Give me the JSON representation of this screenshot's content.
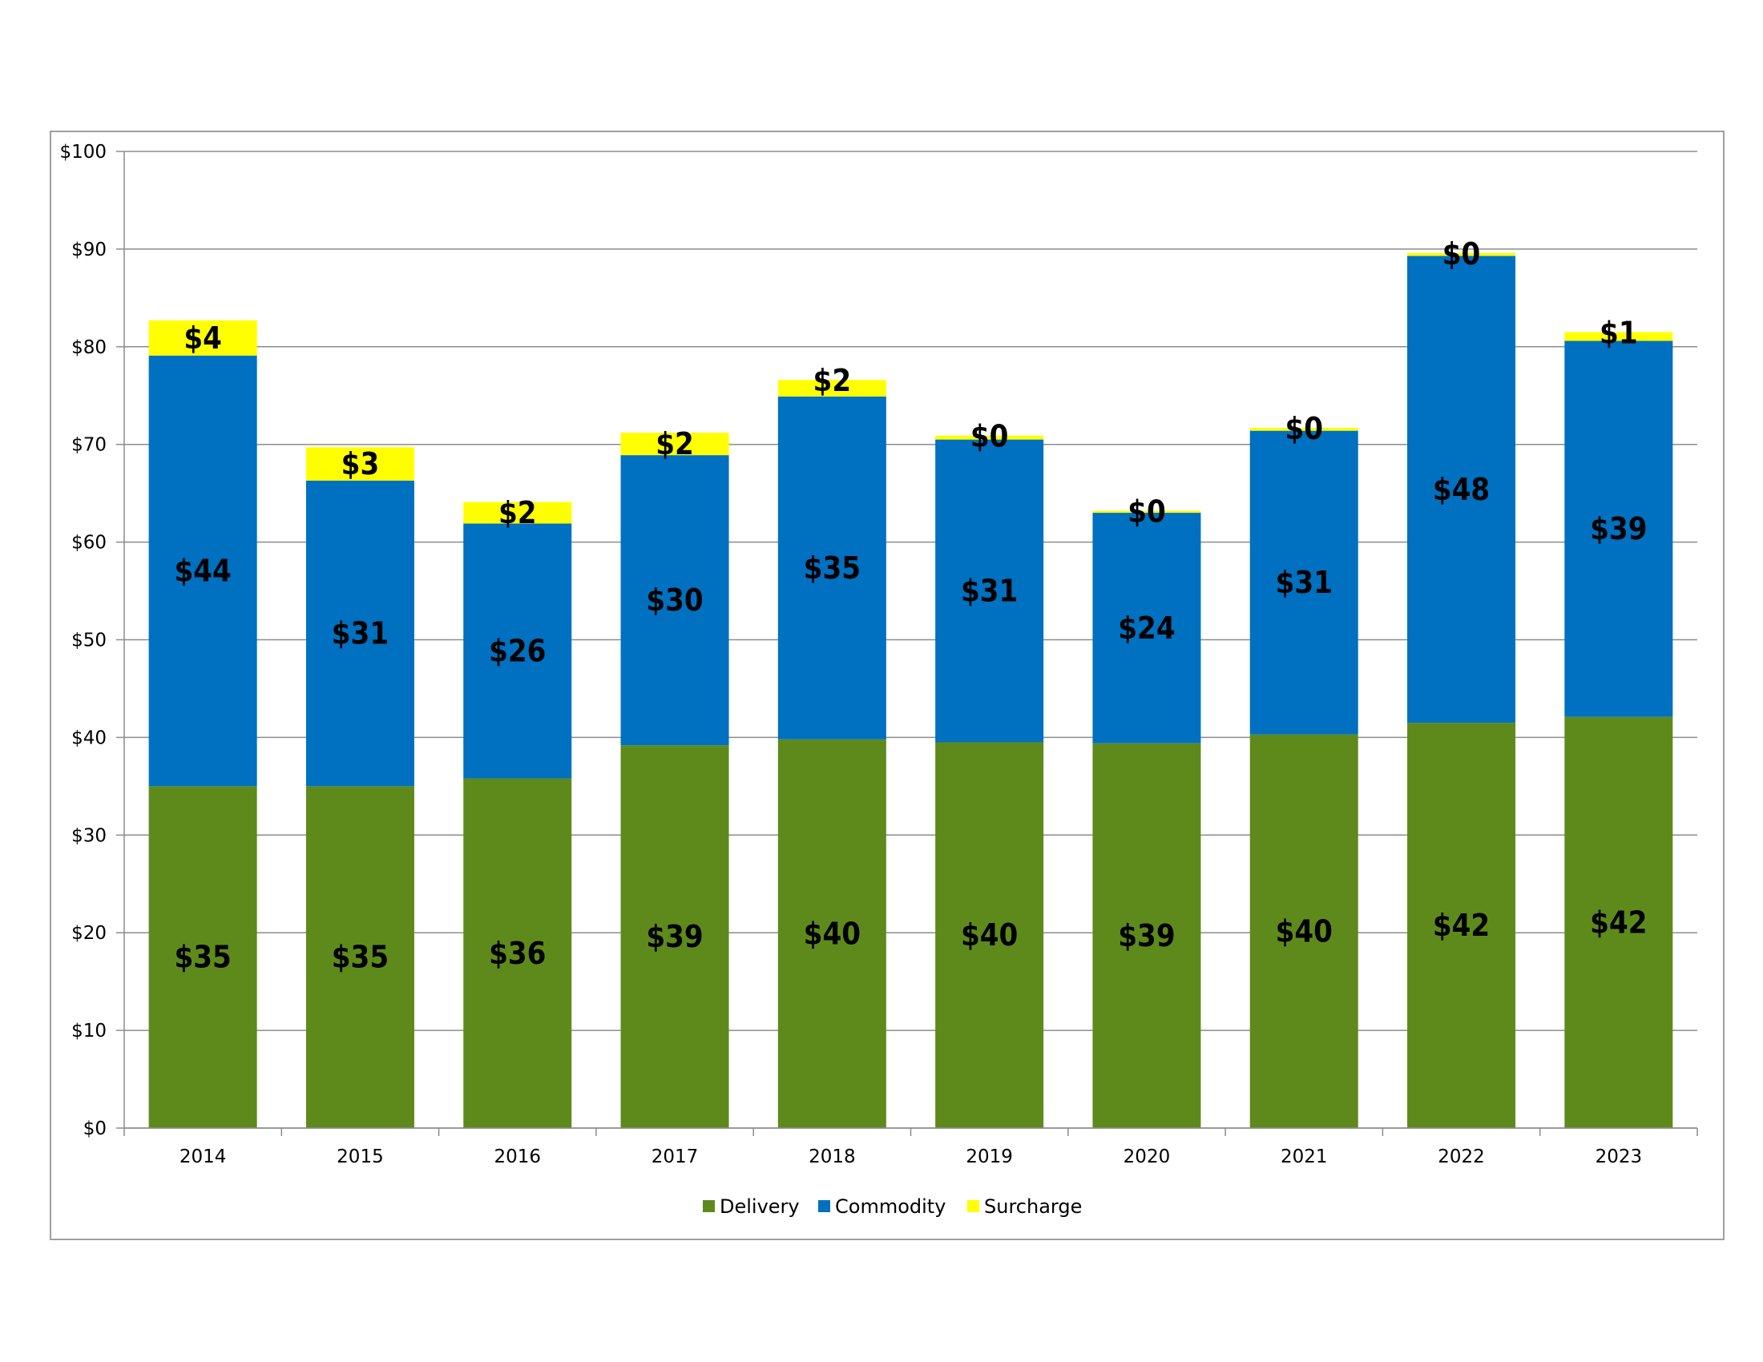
{
  "chart_data": {
    "type": "bar",
    "stacked": true,
    "title": "",
    "xlabel": "",
    "ylabel": "",
    "categories": [
      "2014",
      "2015",
      "2016",
      "2017",
      "2018",
      "2019",
      "2020",
      "2021",
      "2022",
      "2023"
    ],
    "ylim": [
      0,
      100
    ],
    "yticks": [
      0,
      10,
      20,
      30,
      40,
      50,
      60,
      70,
      80,
      90,
      100
    ],
    "ytick_labels": [
      "$0",
      "$10",
      "$20",
      "$30",
      "$40",
      "$50",
      "$60",
      "$70",
      "$80",
      "$90",
      "$100"
    ],
    "grid": true,
    "legend_position": "bottom",
    "series": [
      {
        "name": "Delivery",
        "color": "#5e8a1c",
        "values": [
          35.0,
          35.0,
          35.8,
          39.2,
          39.8,
          39.5,
          39.4,
          40.3,
          41.5,
          42.1
        ],
        "labels": [
          "$35",
          "$35",
          "$36",
          "$39",
          "$40",
          "$40",
          "$39",
          "$40",
          "$42",
          "$42"
        ]
      },
      {
        "name": "Commodity",
        "color": "#0070c0",
        "values": [
          44.1,
          31.3,
          26.1,
          29.7,
          35.1,
          31.0,
          23.6,
          31.1,
          47.8,
          38.5
        ],
        "labels": [
          "$44",
          "$31",
          "$26",
          "$30",
          "$35",
          "$31",
          "$24",
          "$31",
          "$48",
          "$39"
        ]
      },
      {
        "name": "Surcharge",
        "color": "#ffff00",
        "values": [
          3.6,
          3.4,
          2.2,
          2.3,
          1.7,
          0.4,
          0.2,
          0.3,
          0.3,
          0.9
        ],
        "labels": [
          "$4",
          "$3",
          "$2",
          "$2",
          "$2",
          "$0",
          "$0",
          "$0",
          "$0",
          "$1"
        ]
      }
    ]
  }
}
